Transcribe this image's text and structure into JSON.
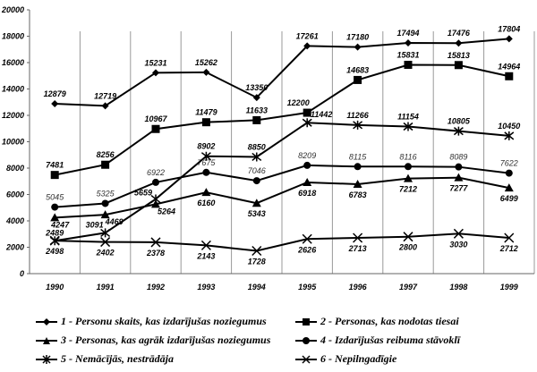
{
  "chart_data": {
    "type": "line",
    "title": "",
    "xlabel": "",
    "ylabel": "",
    "x": [
      "1990",
      "1991",
      "1992",
      "1993",
      "1994",
      "1995",
      "1996",
      "1997",
      "1998",
      "1999"
    ],
    "ylim": [
      0,
      20000
    ],
    "yticks": [
      "0",
      "2000",
      "4000",
      "6000",
      "8000",
      "10000",
      "12000",
      "14000",
      "16000",
      "18000",
      "20000"
    ],
    "grid": "vertical",
    "legend_placement": "bottom",
    "series": [
      {
        "name": "1 - Personu skaits, kas izdarījušas noziegumus",
        "marker": "diamond",
        "values": [
          12879,
          12719,
          15231,
          15262,
          13350,
          17261,
          17180,
          17494,
          17476,
          17804
        ]
      },
      {
        "name": "2 - Personas, kas nodotas tiesai",
        "marker": "square",
        "values": [
          7481,
          8256,
          10967,
          11479,
          11633,
          12200,
          14683,
          15831,
          15813,
          14964
        ]
      },
      {
        "name": "3 - Personas, kas agrāk izdarījušas noziegumus",
        "marker": "triangle",
        "values": [
          4247,
          4469,
          5264,
          6160,
          5343,
          6918,
          6783,
          7212,
          7277,
          6499
        ]
      },
      {
        "name": "4 - Izdarījušas reibuma stāvoklī",
        "marker": "circle",
        "values": [
          5045,
          5325,
          6922,
          7675,
          7046,
          8209,
          8115,
          8116,
          8089,
          7622
        ]
      },
      {
        "name": "5 - Nemācījās, nestrādāja",
        "marker": "star",
        "values": [
          2489,
          3091,
          5659,
          8902,
          8850,
          11442,
          11266,
          11154,
          10805,
          10450
        ]
      },
      {
        "name": "6 - Nepilngadīgie",
        "marker": "x",
        "values": [
          2498,
          2402,
          2378,
          2143,
          1728,
          2626,
          2713,
          2800,
          3030,
          2712
        ]
      }
    ]
  }
}
